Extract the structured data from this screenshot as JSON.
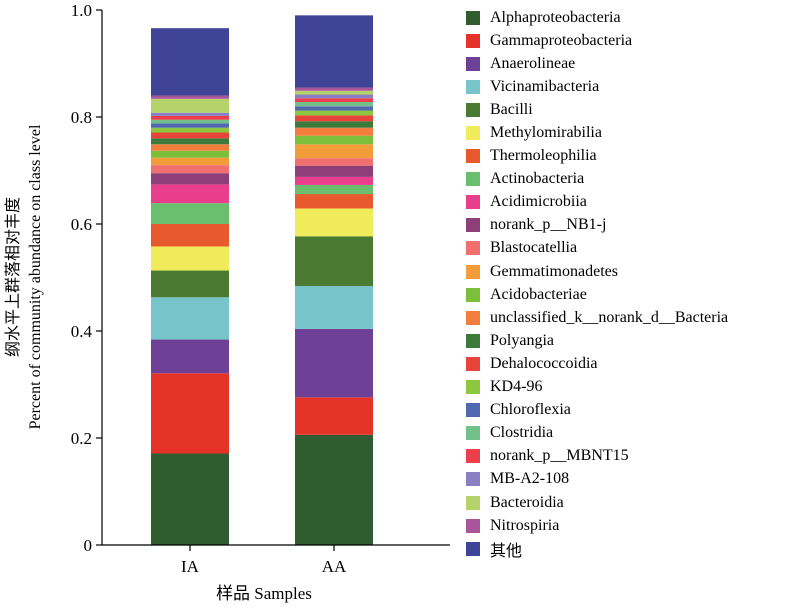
{
  "chart_data": {
    "type": "bar",
    "stacked": true,
    "categories": [
      "IA",
      "AA"
    ],
    "xlabel": "样品 Samples",
    "ylabel_lines": [
      "纲水平上群落相对丰度",
      "Percent of community abundance on class level"
    ],
    "ylim": [
      0,
      1.0
    ],
    "yticks": [
      "0",
      "0.2",
      "0.4",
      "0.6",
      "0.8",
      "1.0"
    ],
    "legend_position": "right",
    "series": [
      {
        "name": "Alphaproteobacteria",
        "color": "#2f5d2f",
        "values": [
          0.171,
          0.206
        ]
      },
      {
        "name": "Gammaproteobacteria",
        "color": "#e63329",
        "values": [
          0.15,
          0.07
        ]
      },
      {
        "name": "Anaerolineae",
        "color": "#6e4196",
        "values": [
          0.063,
          0.128
        ]
      },
      {
        "name": "Vicinamibacteria",
        "color": "#77c5cb",
        "values": [
          0.079,
          0.08
        ]
      },
      {
        "name": "Bacilli",
        "color": "#4b7a32",
        "values": [
          0.05,
          0.093
        ]
      },
      {
        "name": "Methylomirabilia",
        "color": "#efeb5a",
        "values": [
          0.045,
          0.052
        ]
      },
      {
        "name": "Thermoleophilia",
        "color": "#e85a2d",
        "values": [
          0.042,
          0.027
        ]
      },
      {
        "name": "Actinobacteria",
        "color": "#6abf6f",
        "values": [
          0.039,
          0.017
        ]
      },
      {
        "name": "Acidimicrobiia",
        "color": "#e83e8c",
        "values": [
          0.035,
          0.015
        ]
      },
      {
        "name": "norank_p__NB1-j",
        "color": "#8e3f7a",
        "values": [
          0.021,
          0.021
        ]
      },
      {
        "name": "Blastocatellia",
        "color": "#f07070",
        "values": [
          0.015,
          0.014
        ]
      },
      {
        "name": "Gemmatimonadetes",
        "color": "#f39c3a",
        "values": [
          0.014,
          0.026
        ]
      },
      {
        "name": "Acidobacteriae",
        "color": "#7cbf3a",
        "values": [
          0.013,
          0.016
        ]
      },
      {
        "name": "unclassified_k__norank_d__Bacteria",
        "color": "#f27d3d",
        "values": [
          0.012,
          0.015
        ]
      },
      {
        "name": "Polyangia",
        "color": "#3c7a3c",
        "values": [
          0.011,
          0.012
        ]
      },
      {
        "name": "Dehalococcoidia",
        "color": "#e8443a",
        "values": [
          0.011,
          0.011
        ]
      },
      {
        "name": "KD4-96",
        "color": "#8dc63f",
        "values": [
          0.009,
          0.009
        ]
      },
      {
        "name": "Chloroflexia",
        "color": "#4f68b0",
        "values": [
          0.008,
          0.008
        ]
      },
      {
        "name": "Clostridia",
        "color": "#73c08a",
        "values": [
          0.007,
          0.008
        ]
      },
      {
        "name": "norank_p__MBNT15",
        "color": "#ee3d4b",
        "values": [
          0.007,
          0.007
        ]
      },
      {
        "name": "MB-A2-108",
        "color": "#8a7fc2",
        "values": [
          0.006,
          0.007
        ]
      },
      {
        "name": "Bacteroidia",
        "color": "#b5d36a",
        "values": [
          0.026,
          0.007
        ]
      },
      {
        "name": "Nitrospiria",
        "color": "#a8559b",
        "values": [
          0.006,
          0.006
        ]
      },
      {
        "name": "其他",
        "color": "#3f4496",
        "values": [
          0.126,
          0.135
        ]
      }
    ]
  }
}
